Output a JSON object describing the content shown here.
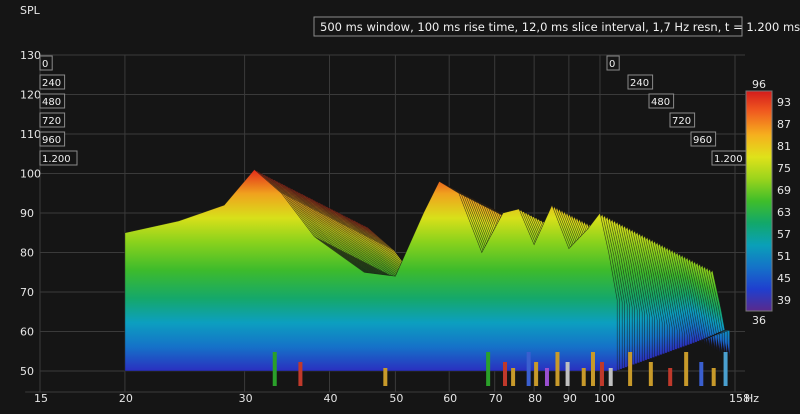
{
  "plot": {
    "y_axis_label": "SPL",
    "x_axis_unit": "Hz",
    "caption": "500 ms window, 100 ms rise time, 12,0 ms slice interval, 1,7 Hz resn, t = 1.200 ms"
  },
  "colorbar": {
    "ticks": [
      "96",
      "93",
      "87",
      "81",
      "75",
      "69",
      "63",
      "57",
      "51",
      "45",
      "39",
      "36"
    ],
    "colors": [
      "#d41c1c",
      "#f0591f",
      "#f6b01e",
      "#dfe21a",
      "#9ad41c",
      "#3fbe2a",
      "#12a86a",
      "#0aa0b8",
      "#1473c8",
      "#1f3fcf",
      "#3b22b0",
      "#5a2a8c"
    ]
  },
  "chart_data": {
    "type": "waterfall",
    "title": "500 ms window, 100 ms rise time, 12,0 ms slice interval, 1,7 Hz resn, t = 1.200 ms",
    "ylabel": "SPL",
    "xlabel": "Hz",
    "x_scale": "log",
    "x_ticks": [
      "15",
      "20",
      "30",
      "40",
      "50",
      "60",
      "70",
      "80",
      "90",
      "100",
      "158"
    ],
    "y_ticks": [
      "130",
      "120",
      "110",
      "100",
      "90",
      "80",
      "70",
      "60",
      "50"
    ],
    "time_ticks_ms": [
      "0",
      "240",
      "480",
      "720",
      "960",
      "1.200"
    ],
    "color_scale_db": [
      96,
      93,
      87,
      81,
      75,
      69,
      63,
      57,
      51,
      45,
      39,
      36
    ],
    "series": [
      {
        "x": [
          20,
          24,
          28,
          31,
          34,
          38,
          45,
          50,
          55,
          58,
          62,
          67,
          72,
          76,
          80,
          85,
          90,
          96,
          100,
          103,
          106
        ],
        "y": [
          85,
          88,
          92,
          101,
          95,
          84,
          75,
          74,
          90,
          98,
          95,
          80,
          90,
          91,
          82,
          92,
          81,
          86,
          90,
          80,
          68
        ]
      }
    ]
  }
}
